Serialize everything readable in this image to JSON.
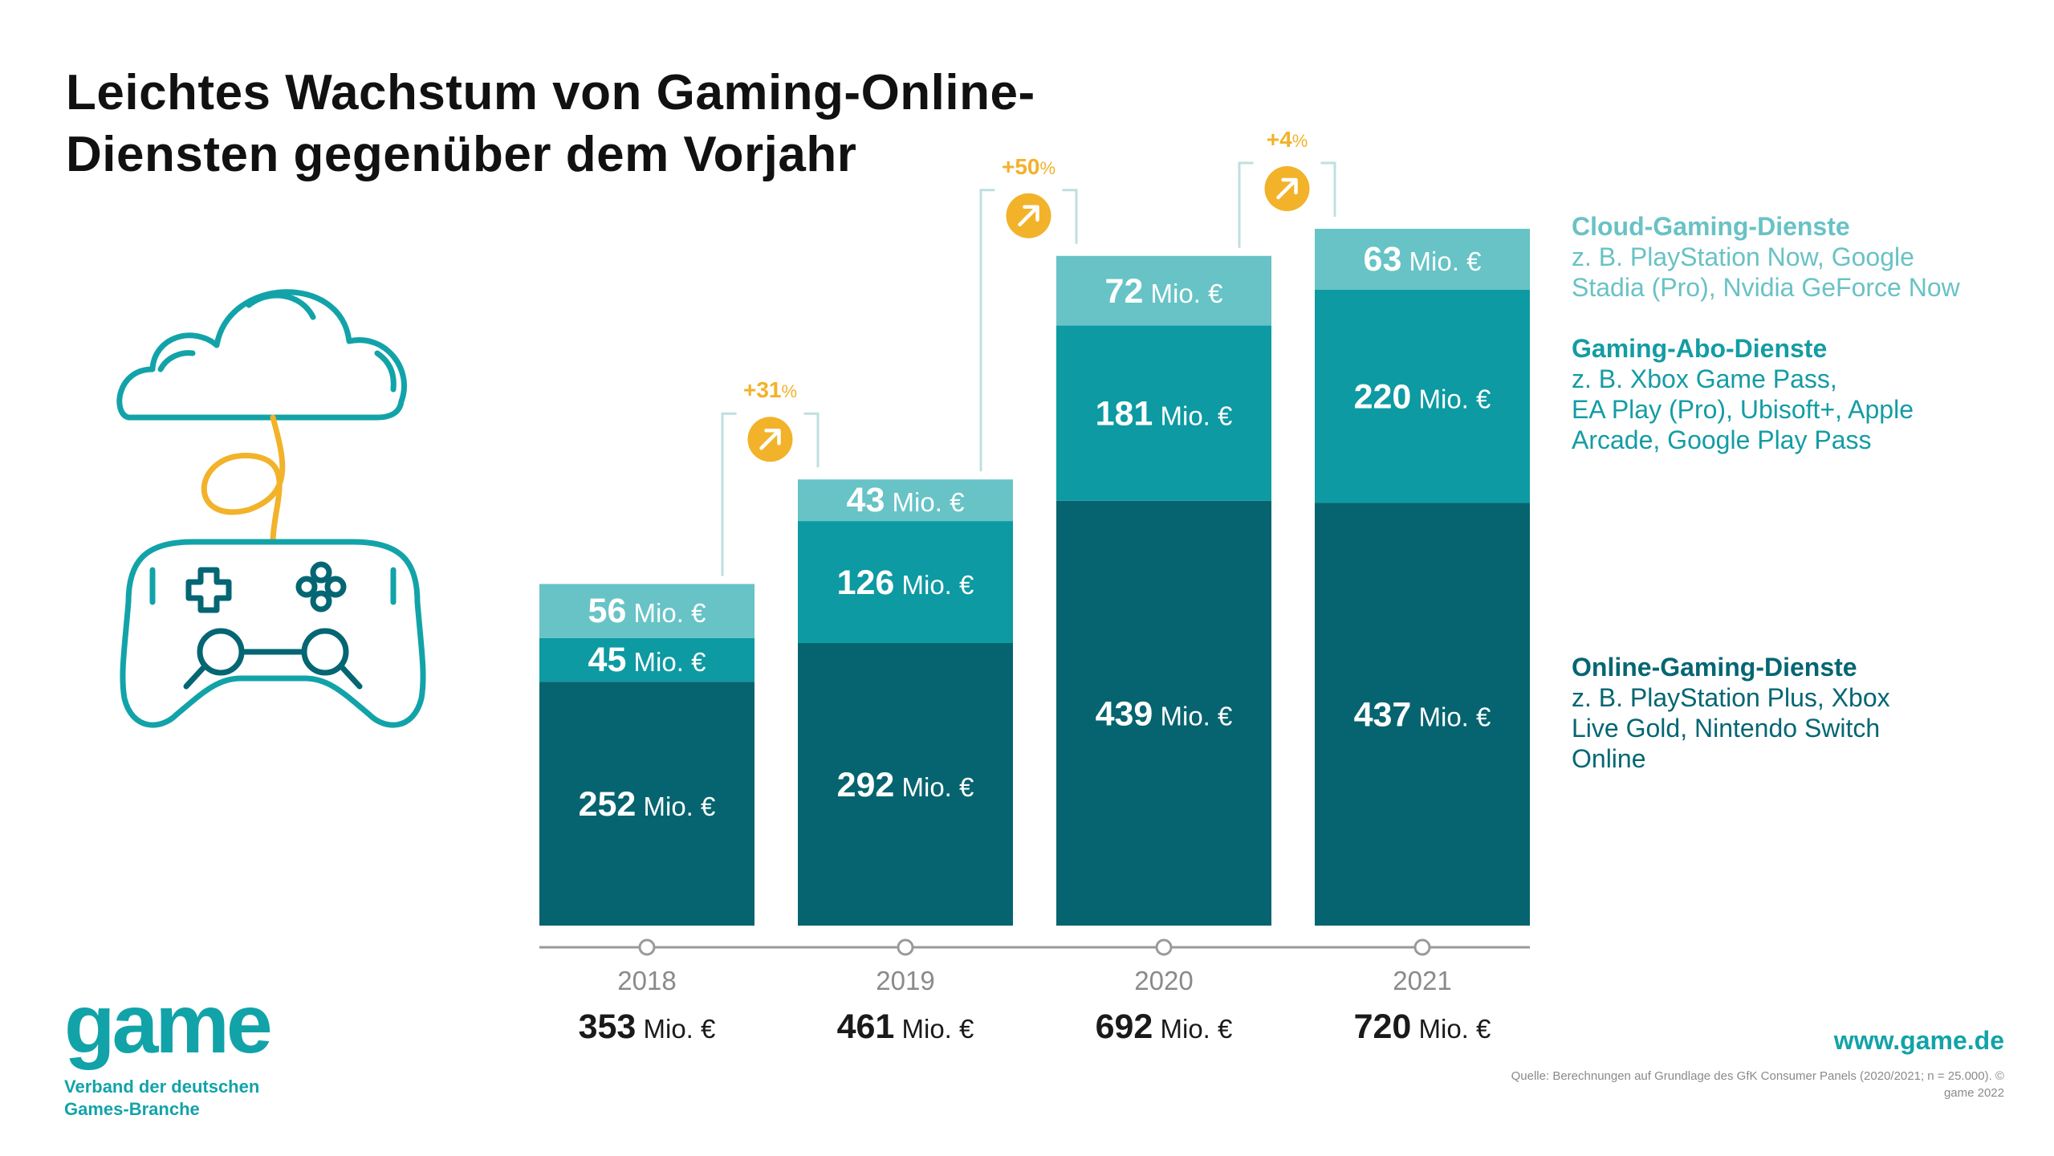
{
  "title_lines": [
    "Leichtes Wachstum von Gaming-Online-",
    "Diensten gegenüber dem Vorjahr"
  ],
  "chart_data": {
    "type": "bar",
    "stacked": true,
    "categories": [
      "2018",
      "2019",
      "2020",
      "2021"
    ],
    "unit": "Mio. €",
    "series": [
      {
        "name": "Online-Gaming-Dienste",
        "color": "#05646f",
        "values": [
          252,
          292,
          439,
          437
        ]
      },
      {
        "name": "Gaming-Abo-Dienste",
        "color": "#0d9aa2",
        "values": [
          45,
          126,
          181,
          220
        ]
      },
      {
        "name": "Cloud-Gaming-Dienste",
        "color": "#67c3c6",
        "values": [
          56,
          43,
          72,
          63
        ]
      }
    ],
    "totals": [
      353,
      461,
      692,
      720
    ],
    "growth": [
      {
        "from": "2018",
        "to": "2019",
        "value": "+31",
        "suffix": "%"
      },
      {
        "from": "2019",
        "to": "2020",
        "value": "+50",
        "suffix": "%"
      },
      {
        "from": "2020",
        "to": "2021",
        "value": "+4",
        "suffix": "%"
      }
    ],
    "ylim": [
      0,
      720
    ]
  },
  "legend": {
    "cloud": {
      "title": "Cloud-Gaming-Dienste",
      "lines": [
        "z. B. PlayStation Now, Google",
        "Stadia (Pro), Nvidia GeForce Now"
      ]
    },
    "abo": {
      "title": "Gaming-Abo-Dienste",
      "lines": [
        "z. B. Xbox Game Pass,",
        "EA Play (Pro), Ubisoft+, Apple",
        "Arcade, Google Play Pass"
      ]
    },
    "online": {
      "title": "Online-Gaming-Dienste",
      "lines": [
        "z. B. PlayStation Plus, Xbox",
        "Live Gold, Nintendo Switch",
        "Online"
      ]
    }
  },
  "logo": {
    "word": "game",
    "subtitle": "Verband der deutschen\nGames-Branche"
  },
  "url": "www.game.de",
  "source": "Quelle: Berechnungen auf Grundlage des GfK Consumer Panels (2020/2021; n = 25.000). © game 2022",
  "colors": {
    "accent": "#12a3a9",
    "growth": "#f2b22a",
    "axis": "#9a9a9a",
    "icon_teal": "#12a3a9",
    "icon_yellow": "#f2b22a"
  },
  "icons": [
    "cloud-icon",
    "gamepad-icon",
    "arrow-up-right-icon"
  ]
}
